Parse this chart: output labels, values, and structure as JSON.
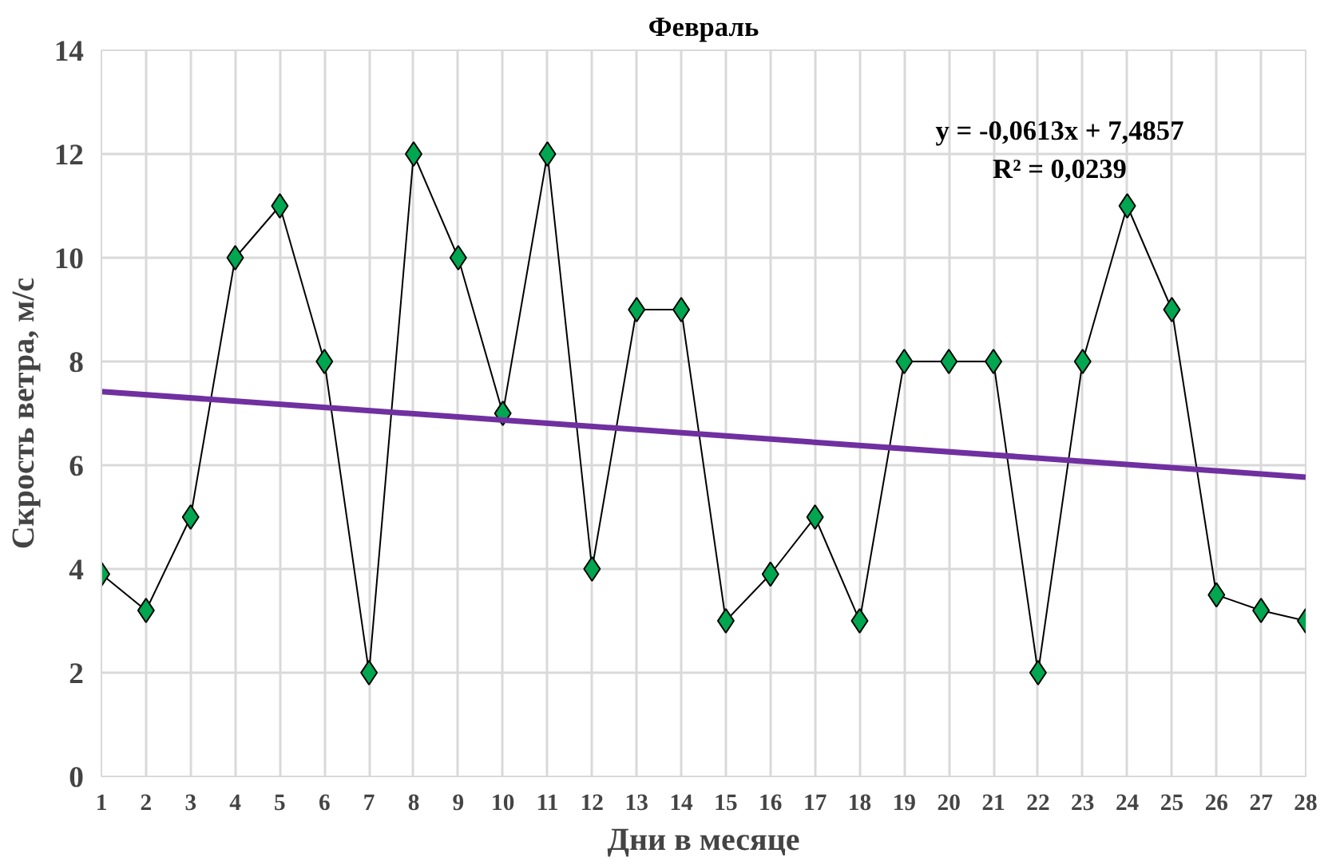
{
  "chart_data": {
    "type": "line",
    "title": "Февраль",
    "xlabel": "Дни в месяце",
    "ylabel": "Скрость ветра, м/с",
    "x": [
      1,
      2,
      3,
      4,
      5,
      6,
      7,
      8,
      9,
      10,
      11,
      12,
      13,
      14,
      15,
      16,
      17,
      18,
      19,
      20,
      21,
      22,
      23,
      24,
      25,
      26,
      27,
      28
    ],
    "series": [
      {
        "color": "#00a650",
        "values": [
          3.9,
          3.2,
          5,
          10,
          11,
          8,
          2,
          12,
          10,
          7,
          12,
          4,
          9,
          9,
          3,
          3.9,
          5,
          3,
          8,
          8,
          8,
          2,
          8,
          11,
          9,
          3.5,
          3.2,
          3
        ]
      },
      {
        "type": "line",
        "color": "#7030a0",
        "x": [
          1,
          28
        ],
        "values": [
          7.42,
          5.77
        ],
        "marker": "none"
      }
    ],
    "xlim": [
      1,
      28
    ],
    "xticks": [
      1,
      2,
      3,
      4,
      5,
      6,
      7,
      8,
      9,
      10,
      11,
      12,
      13,
      14,
      15,
      16,
      17,
      18,
      19,
      20,
      21,
      22,
      23,
      24,
      25,
      26,
      27,
      28
    ],
    "ylim": [
      0,
      14
    ],
    "yticks": [
      0,
      2,
      4,
      6,
      8,
      10,
      12,
      14
    ],
    "annotations": [
      "y = -0,0613x + 7,4857",
      "R² = 0,0239"
    ],
    "grid": true,
    "marker": "diamond"
  }
}
